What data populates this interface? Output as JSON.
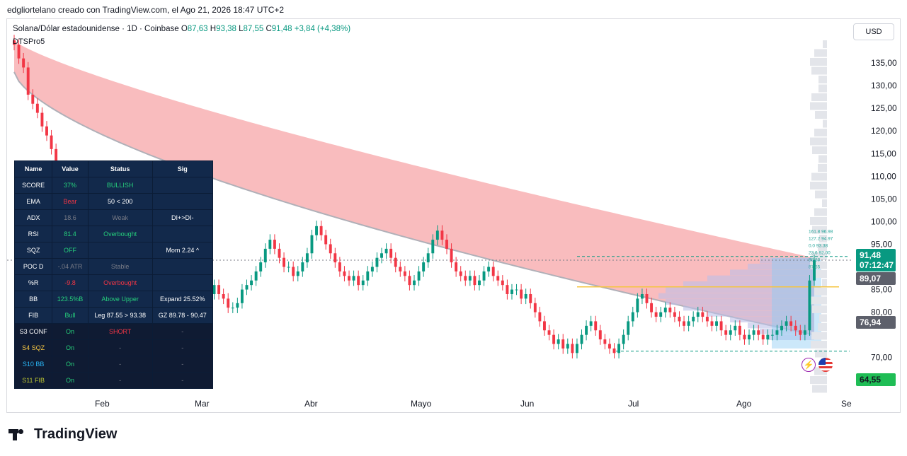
{
  "credit": "edgliortelano creado con TradingView.com, el Ago 21, 2026 18:47 UTC+2",
  "legend": {
    "symbol": "Solana/Dólar estadounidense · 1D · Coinbase",
    "o_label": "O",
    "o": "87,63",
    "h_label": "H",
    "h": "93,38",
    "l_label": "L",
    "l": "87,55",
    "c_label": "C",
    "c": "91,48",
    "change": "+3,84 (+4,38%)"
  },
  "indicator_name": "DTSPro5",
  "currency": "USD",
  "price_tags": {
    "last_price": "91,48",
    "countdown": "07:12:47",
    "level_1": "89,07",
    "level_2": "76,94",
    "level_3": "64,55"
  },
  "colors": {
    "up": "#089981",
    "down": "#f23645",
    "cloud": "#f7a5a8",
    "volume_profile": "#bdbfe8",
    "table_bg": "#12294b"
  },
  "table": {
    "headers": [
      "Name",
      "Value",
      "Status",
      "Sig"
    ],
    "rows": [
      {
        "name": "SCORE",
        "value": "37%",
        "status": "BULLISH",
        "sig": "",
        "value_color": "#26d07c",
        "status_color": "#26d07c"
      },
      {
        "name": "EMA",
        "value": "Bear",
        "status": "50 < 200",
        "sig": "",
        "value_color": "#f23645",
        "status_color": "#ffffff"
      },
      {
        "name": "ADX",
        "value": "18.6",
        "status": "Weak",
        "sig": "DI+>DI-",
        "value_color": "#787b86",
        "status_color": "#787b86"
      },
      {
        "name": "RSI",
        "value": "81.4",
        "status": "Overbought",
        "sig": "",
        "value_color": "#26d07c",
        "status_color": "#26d07c"
      },
      {
        "name": "SQZ",
        "value": "OFF",
        "status": "",
        "sig": "Mom 2.24 ^",
        "value_color": "#26d07c",
        "status_color": "#ffffff"
      },
      {
        "name": "POC D",
        "value": "-.04 ATR",
        "status": "Stable",
        "sig": "",
        "value_color": "#787b86",
        "status_color": "#787b86"
      },
      {
        "name": "%R",
        "value": "-9.8",
        "status": "Overbought",
        "sig": "",
        "value_color": "#f23645",
        "status_color": "#f23645"
      },
      {
        "name": "BB",
        "value": "123.5%B",
        "status": "Above Upper",
        "sig": "Expand 25.52%",
        "value_color": "#26d07c",
        "status_color": "#26d07c"
      },
      {
        "name": "FIB",
        "value": "Bull",
        "status": "Leg 87.55 > 93.38",
        "sig": "GZ 89.78 - 90.47",
        "value_color": "#26d07c",
        "status_color": "#ffffff"
      }
    ],
    "signal_rows": [
      {
        "name": "S3 CONF",
        "value": "On",
        "status": "SHORT",
        "sig": "-",
        "name_color": "#ffffff",
        "status_color": "#f23645"
      },
      {
        "name": "S4 SQZ",
        "value": "On",
        "status": "-",
        "sig": "-",
        "name_color": "#f5c542",
        "status_color": "#787b86"
      },
      {
        "name": "S10 BB",
        "value": "On",
        "status": "-",
        "sig": "-",
        "name_color": "#29b6f6",
        "status_color": "#787b86"
      },
      {
        "name": "S11 FIB",
        "value": "On",
        "status": "-",
        "sig": "-",
        "name_color": "#c0ca33",
        "status_color": "#787b86"
      }
    ]
  },
  "fib_labels": [
    "161.8 96.98",
    "127.2 94.97",
    "0.0 93.38",
    "23.6 92.00",
    "88.80",
    "87.55"
  ],
  "chart_data": {
    "type": "candlestick",
    "x_labels": [
      "Feb",
      "Mar",
      "Abr",
      "Mayo",
      "Jun",
      "Jul",
      "Ago",
      "Se"
    ],
    "y_ticks": [
      "135,00",
      "130,00",
      "125,00",
      "120,00",
      "115,00",
      "110,00",
      "105,00",
      "100,00",
      "95,00",
      "85,00",
      "80,00",
      "70,00"
    ],
    "ylim": [
      62,
      140
    ],
    "closes": [
      139,
      136,
      134,
      128,
      126,
      124,
      121,
      119,
      116,
      112,
      107,
      103,
      98,
      93,
      88,
      84,
      83,
      86,
      87,
      85,
      83,
      88,
      92,
      95,
      93,
      90,
      88,
      86,
      84,
      84,
      85,
      83,
      86,
      87,
      88,
      87,
      86,
      84,
      83,
      81,
      80,
      82,
      84,
      86,
      84,
      83,
      81,
      81,
      82,
      85,
      86,
      87,
      89,
      91,
      94,
      96,
      94,
      92,
      90,
      90,
      88,
      89,
      91,
      93,
      97,
      99,
      97,
      95,
      93,
      91,
      89,
      88,
      87,
      88,
      86,
      87,
      89,
      90,
      92,
      93,
      94,
      92,
      90,
      89,
      88,
      86,
      87,
      89,
      91,
      93,
      96,
      98,
      96,
      94,
      91,
      89,
      88,
      87,
      88,
      86,
      87,
      89,
      90,
      88,
      87,
      86,
      84,
      85,
      85,
      83,
      84,
      82,
      80,
      78,
      76,
      75,
      73,
      74,
      72,
      73,
      71,
      73,
      75,
      77,
      78,
      76,
      74,
      73,
      72,
      71,
      73,
      75,
      78,
      80,
      83,
      84,
      82,
      80,
      79,
      80,
      81,
      80,
      79,
      78,
      77,
      78,
      79,
      80,
      79,
      78,
      77,
      78,
      76,
      75,
      76,
      77,
      75,
      74,
      75,
      76,
      75,
      74,
      75,
      75,
      76,
      77,
      78,
      77,
      76,
      75,
      76,
      87,
      91.48
    ],
    "series": [
      {
        "name": "Cloud",
        "type": "area"
      },
      {
        "name": "Volume Profile",
        "type": "histogram"
      }
    ]
  }
}
